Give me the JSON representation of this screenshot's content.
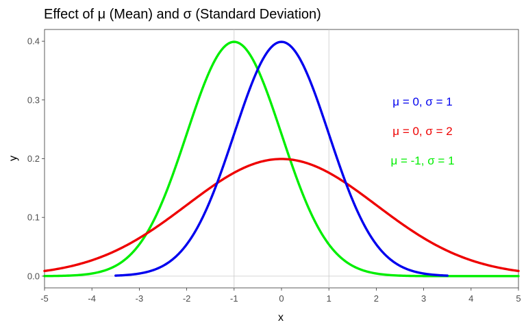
{
  "chart_data": {
    "type": "line",
    "title": "Effect of μ (Mean) and σ (Standard Deviation)",
    "xlabel": "x",
    "ylabel": "y",
    "xlim": [
      -5,
      5
    ],
    "ylim": [
      -0.02,
      0.42
    ],
    "x_ticks": [
      -5,
      -4,
      -3,
      -2,
      -1,
      0,
      1,
      2,
      3,
      4,
      5
    ],
    "x_tick_labels": [
      "-5",
      "-4",
      "-3",
      "-2",
      "-1",
      "0",
      "1",
      "2",
      "3",
      "4",
      "5"
    ],
    "y_ticks": [
      0,
      0.1,
      0.2,
      0.3,
      0.4
    ],
    "y_tick_labels": [
      "0.0",
      "0.1",
      "0.2",
      "0.3",
      "0.4"
    ],
    "x_gridlines": [
      -1,
      1
    ],
    "y_gridlines": [
      0
    ],
    "x": [
      -5,
      -4.5,
      -4,
      -3.5,
      -3,
      -2.5,
      -2,
      -1.5,
      -1,
      -0.5,
      0,
      0.5,
      1,
      1.5,
      2,
      2.5,
      3,
      3.5,
      4,
      4.5,
      5
    ],
    "series": [
      {
        "name": "μ = 0, σ = 1",
        "color": "#0000ee",
        "mu": 0,
        "sigma": 1,
        "x_range": [
          -3.5,
          3.5
        ],
        "values": [
          null,
          null,
          null,
          0.0009,
          0.0044,
          0.0175,
          0.054,
          0.1295,
          0.242,
          0.3521,
          0.3989,
          0.3521,
          0.242,
          0.1295,
          0.054,
          0.0175,
          0.0044,
          0.0009,
          null,
          null,
          null
        ]
      },
      {
        "name": "μ = 0, σ = 2",
        "color": "#ee0000",
        "mu": 0,
        "sigma": 2,
        "x_range": [
          -5,
          5
        ],
        "values": [
          0.0088,
          0.0159,
          0.027,
          0.0431,
          0.0648,
          0.0913,
          0.121,
          0.1506,
          0.176,
          0.1933,
          0.1995,
          0.1933,
          0.176,
          0.1506,
          0.121,
          0.0913,
          0.0648,
          0.0431,
          0.027,
          0.0159,
          0.0088
        ]
      },
      {
        "name": "μ = -1, σ = 1",
        "color": "#00ee00",
        "mu": -1,
        "sigma": 1,
        "x_range": [
          -5,
          5
        ],
        "values": [
          0.0001,
          0.0009,
          0.0044,
          0.0175,
          0.054,
          0.1295,
          0.242,
          0.3521,
          0.3989,
          0.3521,
          0.242,
          0.1295,
          0.054,
          0.0175,
          0.0044,
          0.0009,
          0.0001,
          0.0,
          0.0,
          0.0,
          0.0
        ]
      }
    ],
    "legend": {
      "placement": "right",
      "entries": [
        "μ = 0, σ = 1",
        "μ = 0, σ = 2",
        "μ = -1, σ = 1"
      ]
    }
  }
}
